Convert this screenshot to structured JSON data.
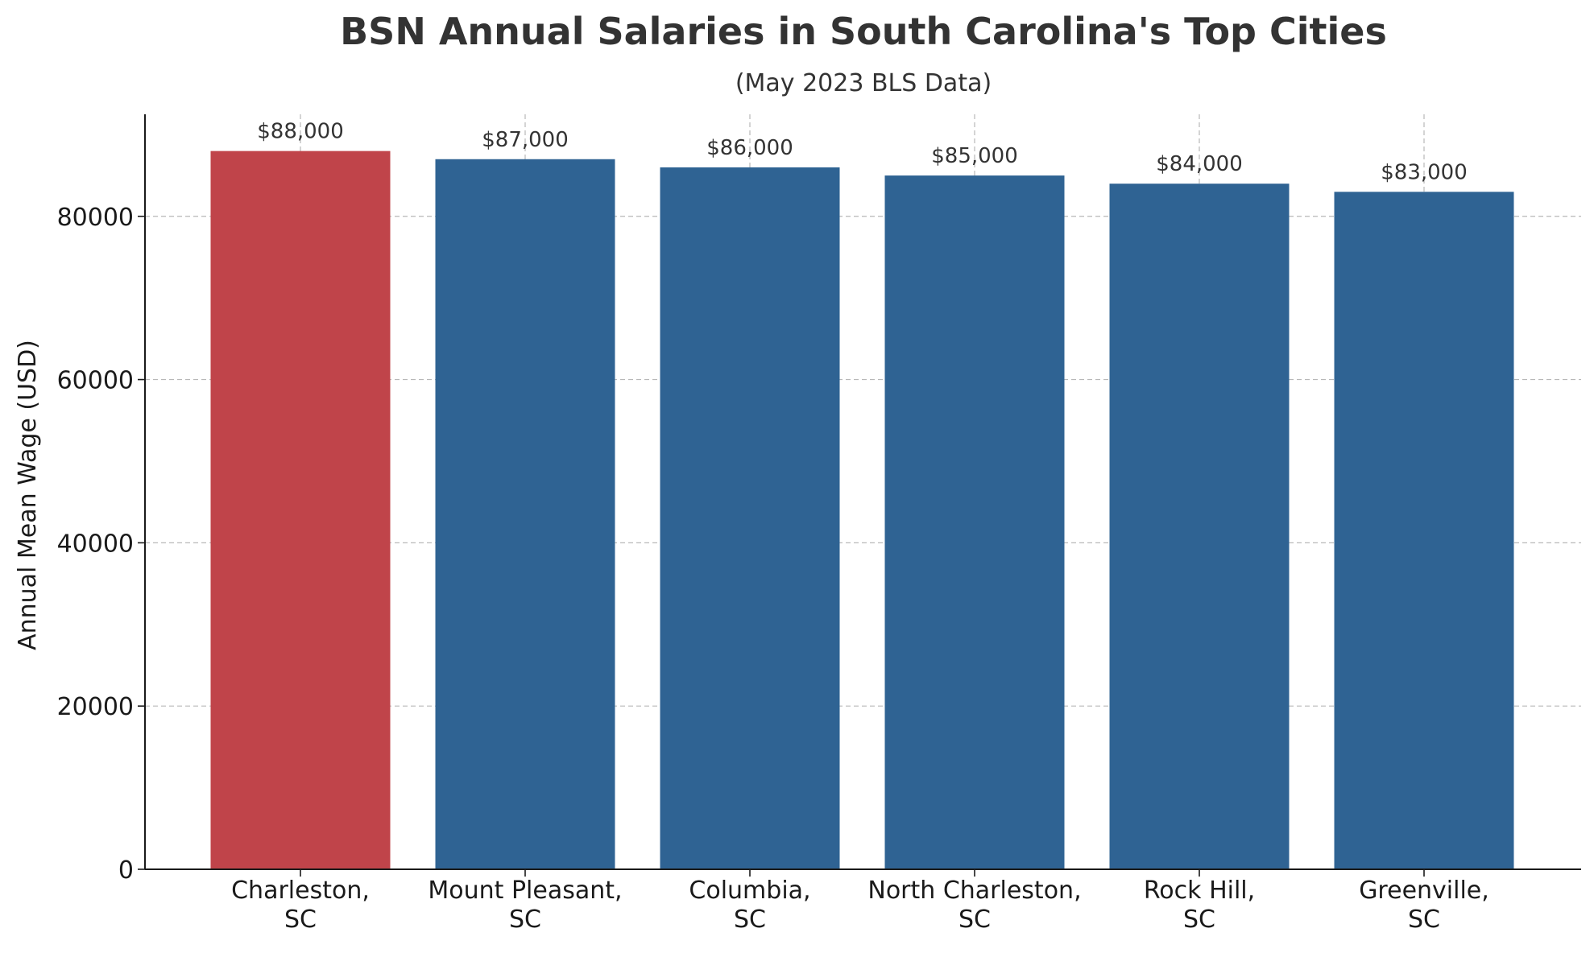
{
  "chart_data": {
    "type": "bar",
    "title": "BSN Annual Salaries in South Carolina's Top Cities",
    "subtitle": "(May 2023 BLS Data)",
    "xlabel": "",
    "ylabel": "Annual Mean Wage (USD)",
    "categories": [
      [
        "Charleston,",
        "SC"
      ],
      [
        "Mount Pleasant,",
        "SC"
      ],
      [
        "Columbia,",
        "SC"
      ],
      [
        "North Charleston,",
        "SC"
      ],
      [
        "Rock Hill,",
        "SC"
      ],
      [
        "Greenville,",
        "SC"
      ]
    ],
    "values": [
      88000,
      87000,
      86000,
      85000,
      84000,
      83000
    ],
    "data_labels": [
      "$88,000",
      "$87,000",
      "$86,000",
      "$85,000",
      "$84,000",
      "$83,000"
    ],
    "ylim": [
      0,
      92500
    ],
    "yticks": [
      0,
      20000,
      40000,
      60000,
      80000
    ],
    "ytick_labels": [
      "0",
      "20000",
      "40000",
      "60000",
      "80000"
    ],
    "grid": true,
    "colors": {
      "highlight": "#c0444a",
      "bar": "#2f6393"
    },
    "highlight_index": 0
  }
}
